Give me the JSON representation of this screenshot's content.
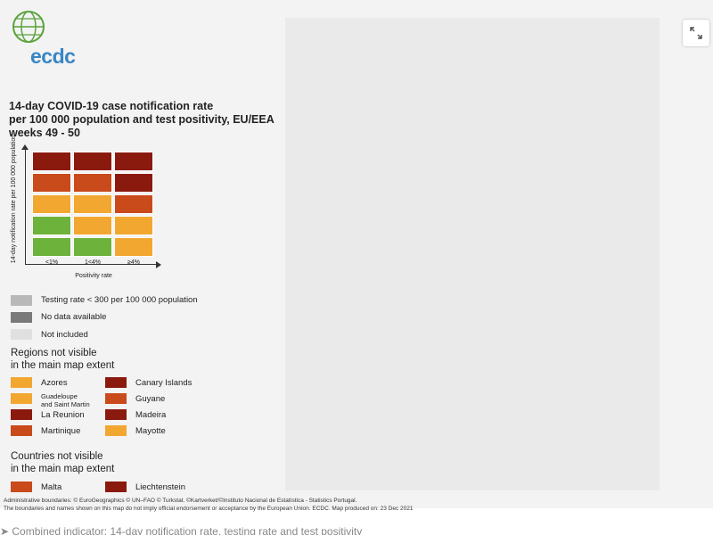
{
  "logo": {
    "text": "ecdc"
  },
  "title": "14-day COVID-19 case notification rate\nper 100 000 population and test positivity, EU/EEA\nweeks 49 - 50",
  "matrix": {
    "y_axis_label": "14-day notification rate per 100 000 population",
    "x_axis_title": "Positivity rate",
    "x_ticks": [
      "<1%",
      "1<4%",
      "≥4%"
    ],
    "rows": [
      [
        "#8b1a0e",
        "#8b1a0e",
        "#8b1a0e"
      ],
      [
        "#c94a1b",
        "#c94a1b",
        "#8b1a0e"
      ],
      [
        "#f2a731",
        "#f2a731",
        "#c94a1b"
      ],
      [
        "#6cb23b",
        "#f2a731",
        "#f2a731"
      ],
      [
        "#6cb23b",
        "#6cb23b",
        "#f2a731"
      ]
    ]
  },
  "legend": {
    "greys": [
      {
        "label": "Testing rate < 300 per 100 000 population",
        "color": "#b8b8b8"
      },
      {
        "label": "No data available",
        "color": "#7a7a7a"
      },
      {
        "label": "Not included",
        "color": "#e0e0e0"
      }
    ],
    "regions_title": "Regions not visible\nin the main map extent",
    "regions": [
      {
        "label": "Azores",
        "color": "#f2a731"
      },
      {
        "label": "Canary Islands",
        "color": "#8b1a0e"
      },
      {
        "label": "Guadeloupe\nand Saint Martin",
        "color": "#f2a731"
      },
      {
        "label": "Guyane",
        "color": "#c94a1b"
      },
      {
        "label": "La Reunion",
        "color": "#8b1a0e"
      },
      {
        "label": "Madeira",
        "color": "#8b1a0e"
      },
      {
        "label": "Martinique",
        "color": "#c94a1b"
      },
      {
        "label": "Mayotte",
        "color": "#f2a731"
      }
    ],
    "countries_title": "Countries not visible\nin the main map extent",
    "countries": [
      {
        "label": "Malta",
        "color": "#c94a1b"
      },
      {
        "label": "Liechtenstein",
        "color": "#8b1a0e"
      }
    ]
  },
  "attribution": {
    "line1": "Administrative boundaries: © EuroGeographics © UN–FAO © Turkstat. ©Kartverket/©Instituto Nacional de Estatística - Statistics Portugal.",
    "line2": "The boundaries and names shown on this map do not imply official endorsement or acceptance by the European Union. ECDC. Map produced on: 23 Dec 2021"
  },
  "caption": "Combined indicator: 14-day notification rate, testing rate and test positivity"
}
